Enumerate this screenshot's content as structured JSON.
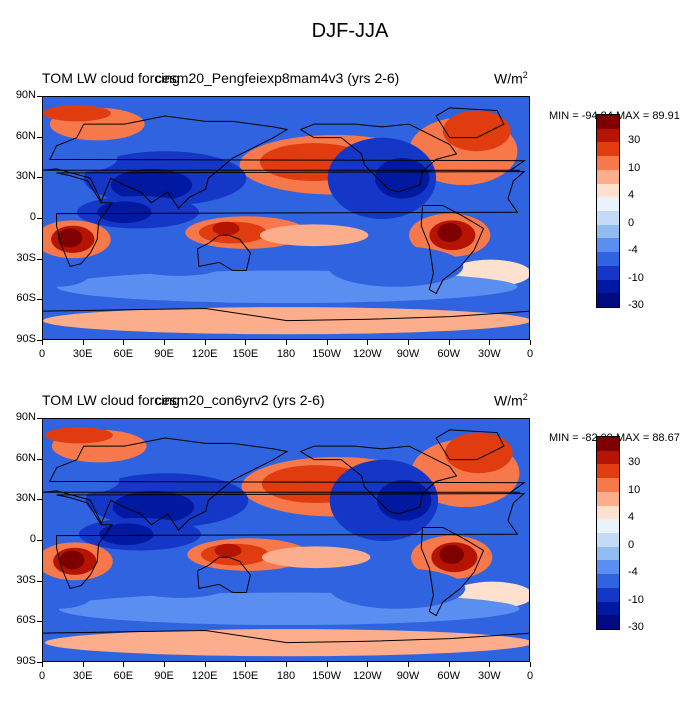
{
  "title": "DJF-JJA",
  "panels": [
    {
      "left_string": "TOM LW cloud forcing",
      "center_string": "cesm20_Pengfeiexp8mam4v3",
      "years": "(yrs 2-6)",
      "units": "W/m",
      "units_sup": "2",
      "minmax": "MIN = -94.84 MAX =  89.91"
    },
    {
      "left_string": "TOM LW cloud forcing",
      "center_string": "cesm20_con6yrv2",
      "years": "(yrs 2-6)",
      "units": "W/m",
      "units_sup": "2",
      "minmax": "MIN = -82.09 MAX =  88.67"
    }
  ],
  "lat_labels": [
    "90N",
    "60N",
    "30N",
    "0",
    "30S",
    "60S",
    "90S"
  ],
  "lon_labels": [
    "0",
    "30E",
    "60E",
    "90E",
    "120E",
    "150E",
    "180",
    "150W",
    "120W",
    "90W",
    "60W",
    "30W",
    "0"
  ],
  "colorbar": {
    "labels": [
      "30",
      "10",
      "4",
      "0",
      "-4",
      "-10",
      "-30"
    ],
    "colors": [
      "#7f0000",
      "#b51500",
      "#e03c10",
      "#f7784a",
      "#fcae8c",
      "#fee0cf",
      "#eaf3fb",
      "#c4daf5",
      "#92bbf0",
      "#5a8ef0",
      "#2f63e0",
      "#1437c8",
      "#0019a0",
      "#000a80"
    ]
  },
  "chart_data": {
    "type": "map",
    "title": "DJF-JJA",
    "field": "TOM LW cloud forcing",
    "units": "W/m2",
    "x_axis": [
      "0",
      "30E",
      "60E",
      "90E",
      "120E",
      "150E",
      "180",
      "150W",
      "120W",
      "90W",
      "60W",
      "30W",
      "0"
    ],
    "y_axis": [
      "90N",
      "60N",
      "30N",
      "0",
      "30S",
      "60S",
      "90S"
    ],
    "contour_levels": [
      -30,
      -20,
      -15,
      -10,
      -7,
      -4,
      -2,
      0,
      2,
      4,
      7,
      10,
      15,
      20,
      30
    ],
    "panels": [
      {
        "case": "cesm20_Pengfeiexp8mam4v3",
        "years": "(yrs 2-6)",
        "min": -94.84,
        "max": 89.91
      },
      {
        "case": "cesm20_con6yrv2",
        "years": "(yrs 2-6)",
        "min": -82.09,
        "max": 88.67
      }
    ]
  }
}
